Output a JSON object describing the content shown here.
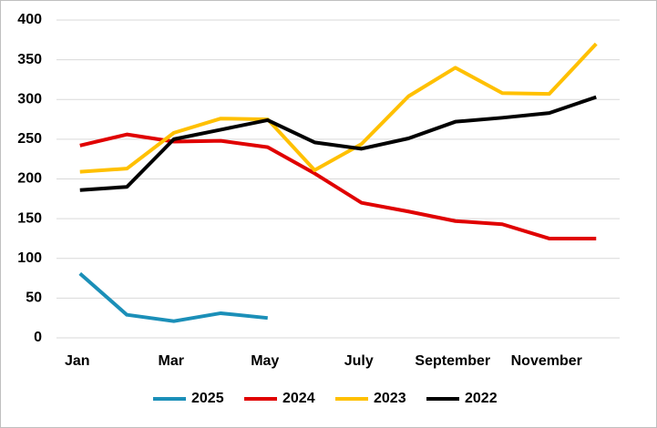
{
  "chart_data": {
    "type": "line",
    "categories": [
      "Jan",
      null,
      "Mar",
      null,
      "May",
      null,
      "July",
      null,
      "September",
      null,
      "November",
      null
    ],
    "series": [
      {
        "name": "2025",
        "color": "#1b8fb8",
        "values": [
          81,
          29,
          21,
          31,
          25,
          null,
          null,
          null,
          null,
          null,
          null,
          null
        ]
      },
      {
        "name": "2024",
        "color": "#e00000",
        "values": [
          242,
          256,
          247,
          248,
          240,
          207,
          170,
          159,
          147,
          143,
          125,
          125
        ]
      },
      {
        "name": "2023",
        "color": "#ffc000",
        "values": [
          209,
          213,
          258,
          276,
          275,
          211,
          244,
          304,
          340,
          308,
          307,
          370
        ]
      },
      {
        "name": "2022",
        "color": "#000000",
        "values": [
          186,
          190,
          250,
          262,
          274,
          246,
          238,
          251,
          272,
          277,
          283,
          303
        ]
      }
    ],
    "ylim": [
      0,
      400
    ],
    "yticks": [
      0,
      50,
      100,
      150,
      200,
      250,
      300,
      350,
      400
    ],
    "grid": true,
    "legend": "bottom"
  }
}
